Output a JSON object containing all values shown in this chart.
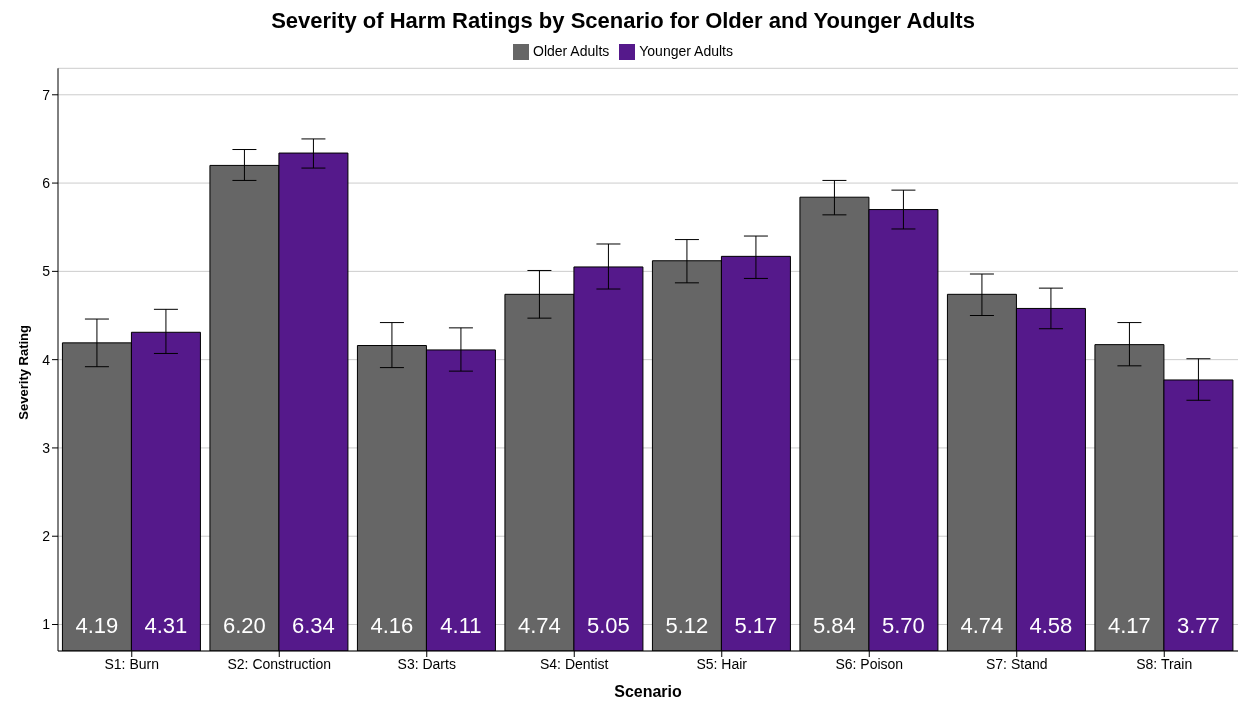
{
  "chart_data": {
    "type": "bar",
    "title": "Severity of Harm Ratings by Scenario for Older and Younger Adults",
    "xlabel": "Scenario",
    "ylabel": "Severity Rating",
    "categories": [
      "S1: Burn",
      "S2: Construction",
      "S3: Darts",
      "S4: Dentist",
      "S5: Hair",
      "S6: Poison",
      "S7: Stand",
      "S8: Train"
    ],
    "series": [
      {
        "name": "Older Adults",
        "color": "#666666",
        "values": [
          4.19,
          6.2,
          4.16,
          4.74,
          5.12,
          5.84,
          4.74,
          4.17
        ],
        "value_labels": [
          "4.19",
          "6.20",
          "4.16",
          "4.74",
          "5.12",
          "5.84",
          "4.74",
          "4.17"
        ],
        "errors": [
          [
            3.92,
            4.46
          ],
          [
            6.03,
            6.38
          ],
          [
            3.91,
            4.42
          ],
          [
            4.47,
            5.01
          ],
          [
            4.87,
            5.36
          ],
          [
            5.64,
            6.03
          ],
          [
            4.5,
            4.97
          ],
          [
            3.93,
            4.42
          ]
        ]
      },
      {
        "name": "Younger Adults",
        "color": "#55198b",
        "values": [
          4.31,
          6.34,
          4.11,
          5.05,
          5.17,
          5.7,
          4.58,
          3.77
        ],
        "value_labels": [
          "4.31",
          "6.34",
          "4.11",
          "5.05",
          "5.17",
          "5.70",
          "4.58",
          "3.77"
        ],
        "errors": [
          [
            4.07,
            4.57
          ],
          [
            6.17,
            6.5
          ],
          [
            3.87,
            4.36
          ],
          [
            4.8,
            5.31
          ],
          [
            4.92,
            5.4
          ],
          [
            5.48,
            5.92
          ],
          [
            4.35,
            4.81
          ],
          [
            3.54,
            4.01
          ]
        ]
      }
    ],
    "ylim": [
      0.7,
      7.3
    ],
    "yticks": [
      1,
      2,
      3,
      4,
      5,
      6,
      7
    ],
    "grid": "y",
    "legend": "top"
  }
}
